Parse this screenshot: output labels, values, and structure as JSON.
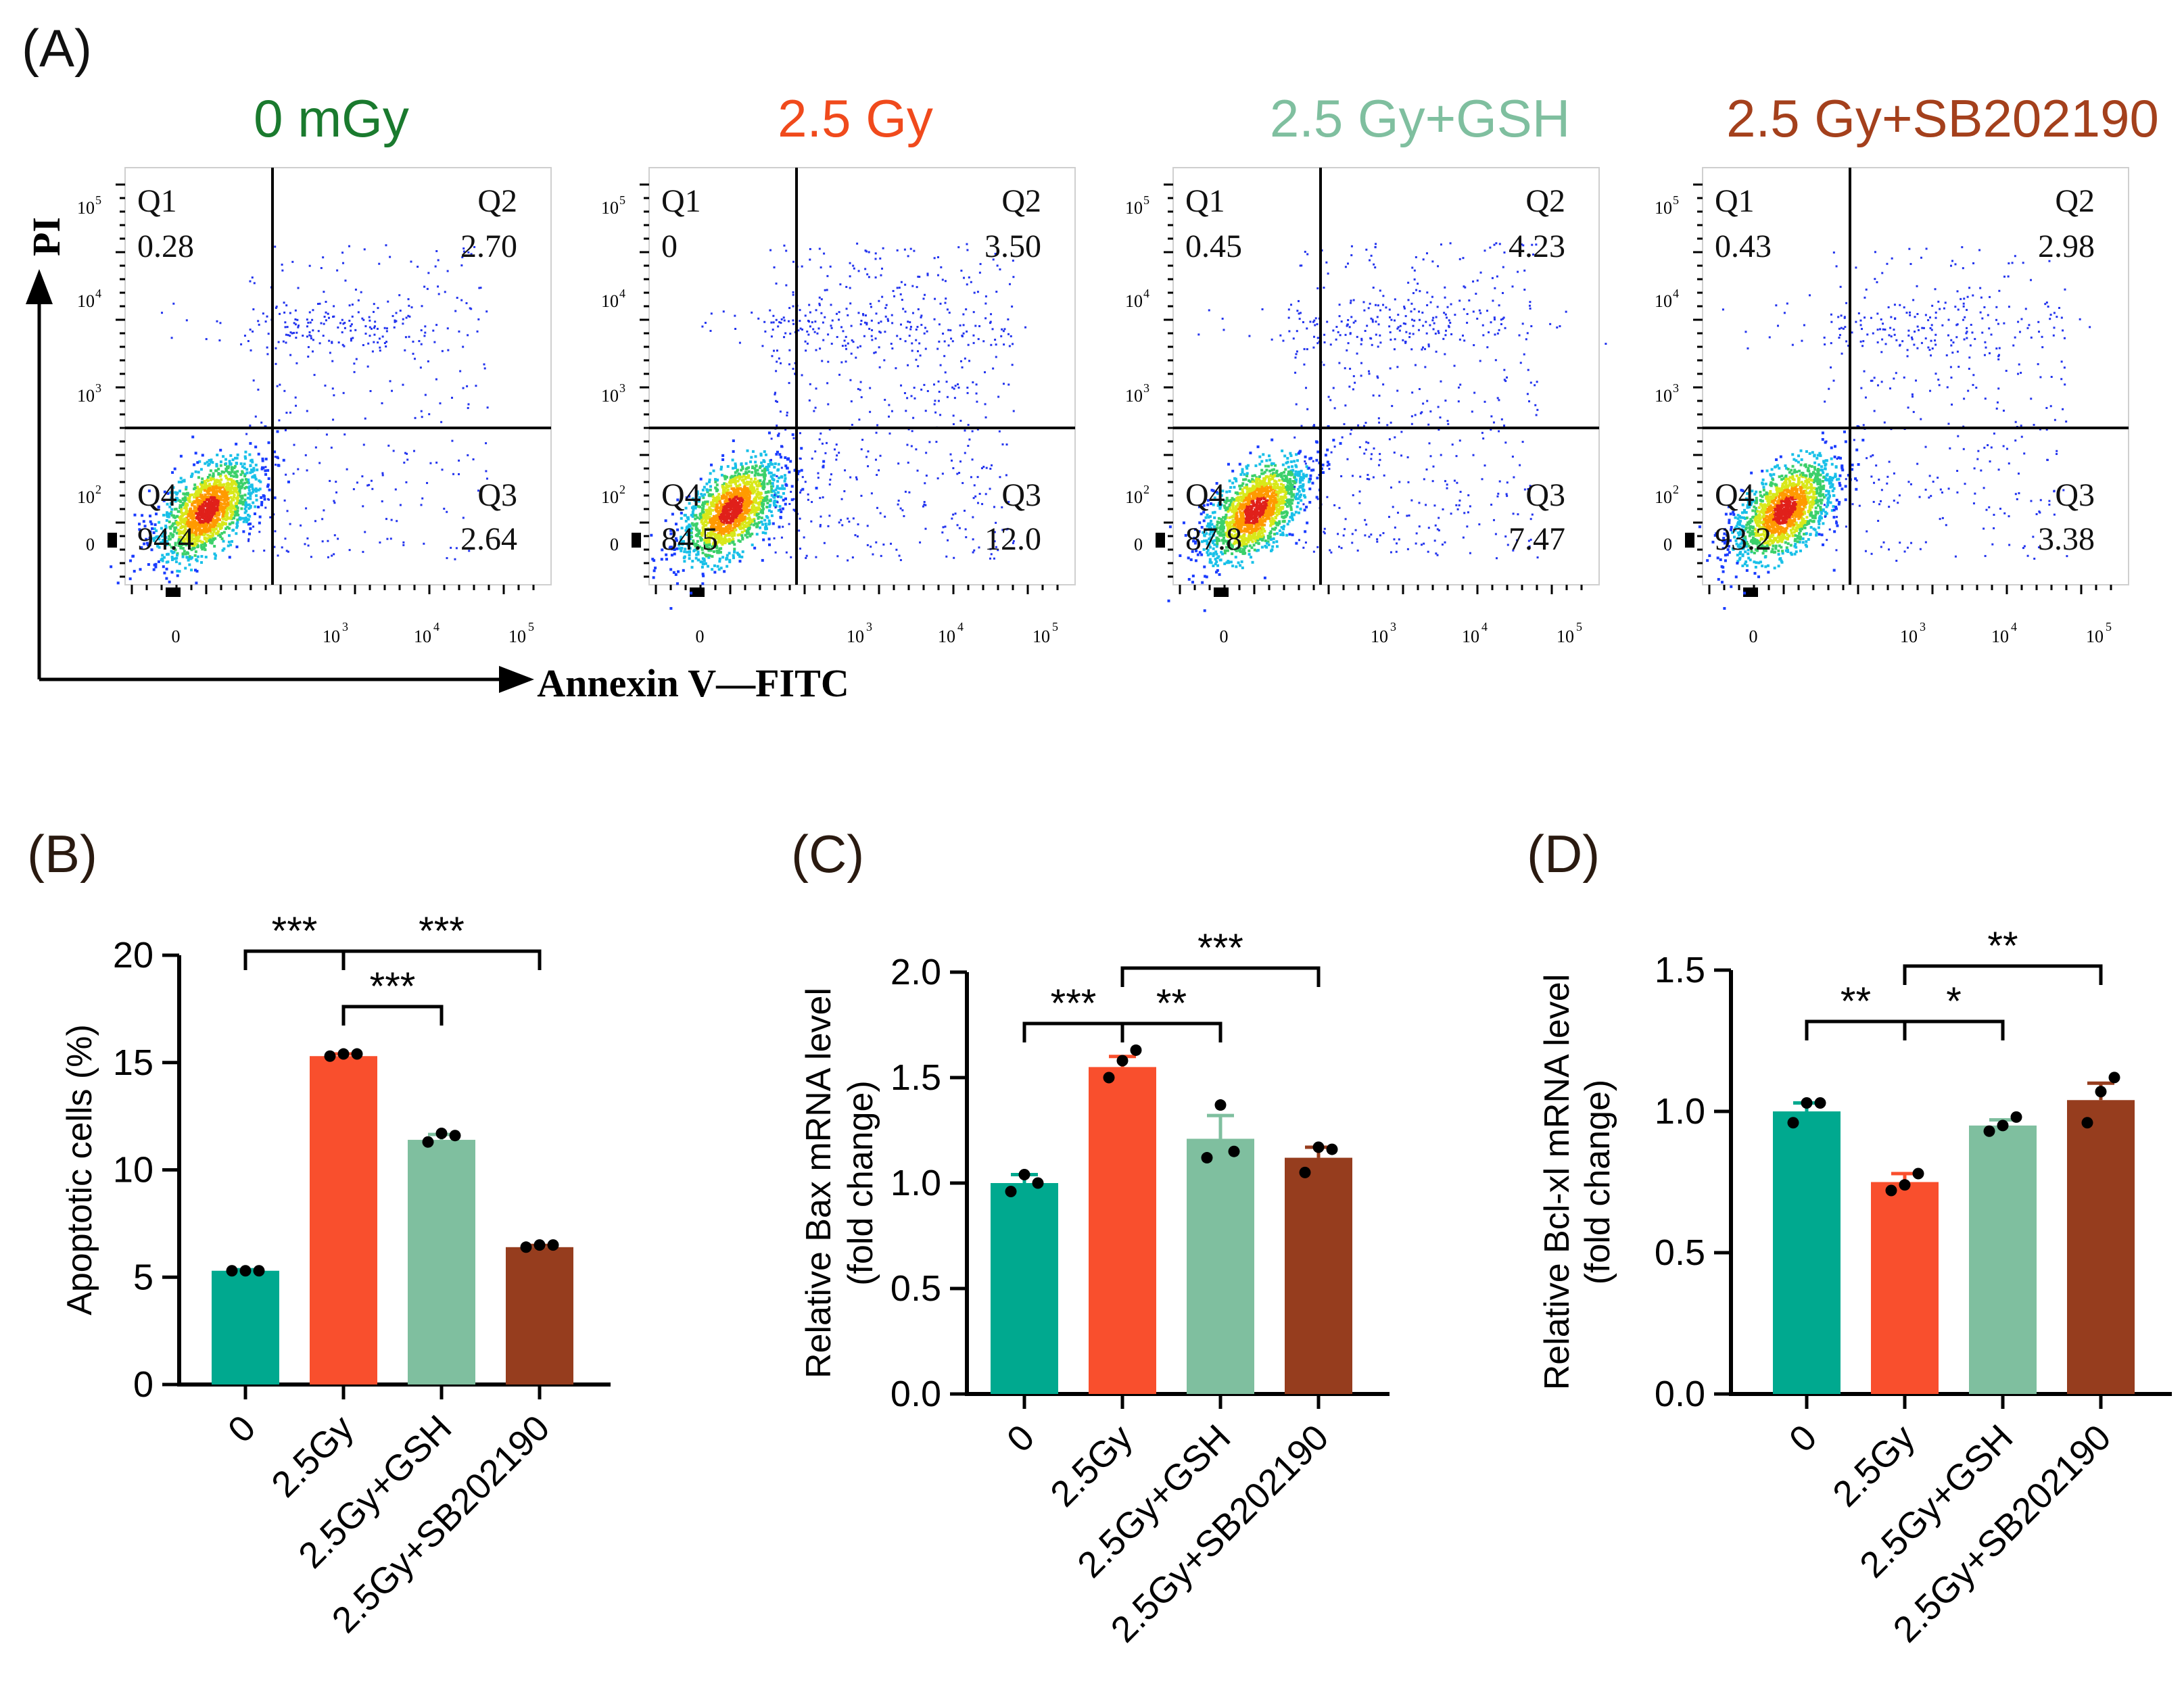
{
  "panel_a": {
    "label": "(A)",
    "y_axis_label": "PI",
    "x_axis_label": "Annexin V—FITC",
    "log_ticks": [
      "0",
      "10",
      "10",
      "10",
      "10"
    ],
    "log_ticks_exp": [
      "",
      "2",
      "3",
      "4",
      "5"
    ],
    "x_ticks": [
      "0",
      "10",
      "10",
      "10"
    ],
    "x_ticks_exp": [
      "",
      "3",
      "4",
      "5"
    ],
    "plots": [
      {
        "title": "0 mGy",
        "color": "#1a7a2e",
        "q1": "Q1",
        "q1_val": "0.28",
        "q2": "Q2",
        "q2_val": "2.70",
        "q3": "Q3",
        "q3_val": "2.64",
        "q4": "Q4",
        "q4_val": "94.4",
        "spread": 0.55
      },
      {
        "title": "2.5 Gy",
        "color": "#f04a1c",
        "q1": "Q1",
        "q1_val": "0",
        "q2": "Q2",
        "q2_val": "3.50",
        "q3": "Q3",
        "q3_val": "12.0",
        "q4": "Q4",
        "q4_val": "84.5",
        "spread": 1.0
      },
      {
        "title": "2.5 Gy+GSH",
        "color": "#7fbf9f",
        "q1": "Q1",
        "q1_val": "0.45",
        "q2": "Q2",
        "q2_val": "4.23",
        "q3": "Q3",
        "q3_val": "7.47",
        "q4": "Q4",
        "q4_val": "87.8",
        "spread": 0.85
      },
      {
        "title": "2.5 Gy+SB202190",
        "color": "#a4401c",
        "q1": "Q1",
        "q1_val": "0.43",
        "q2": "Q2",
        "q2_val": "2.98",
        "q3": "Q3",
        "q3_val": "3.38",
        "q4": "Q4",
        "q4_val": "93.2",
        "spread": 0.6
      }
    ]
  },
  "chart_data": [
    {
      "panel": "(B)",
      "type": "bar",
      "categories": [
        "0",
        "2.5Gy",
        "2.5Gy+GSH",
        "2.5Gy+SB202190"
      ],
      "values": [
        5.3,
        15.3,
        11.4,
        6.4
      ],
      "errors": [
        0.05,
        0.1,
        0.25,
        0.08
      ],
      "points": [
        [
          5.3,
          5.3,
          5.3
        ],
        [
          15.3,
          15.4,
          15.4
        ],
        [
          11.3,
          11.7,
          11.6
        ],
        [
          6.4,
          6.5,
          6.5
        ]
      ],
      "colors": [
        "#00a98f",
        "#f94f2d",
        "#7fbf9f",
        "#963d1e"
      ],
      "title": "",
      "ylabel": "Apoptotic cells (%)",
      "xlabel": "",
      "ylim": [
        0,
        20
      ],
      "yticks": [
        "0",
        "5",
        "10",
        "15",
        "20"
      ],
      "significance": [
        {
          "from": 0,
          "to": 1,
          "label": "***",
          "level": 0
        },
        {
          "from": 1,
          "to": 3,
          "label": "***",
          "level": 0
        },
        {
          "from": 1,
          "to": 2,
          "label": "***",
          "level": 1
        }
      ]
    },
    {
      "panel": "(C)",
      "type": "bar",
      "categories": [
        "0",
        "2.5Gy",
        "2.5Gy+GSH",
        "2.5Gy+SB202190"
      ],
      "values": [
        1.0,
        1.55,
        1.21,
        1.12
      ],
      "errors": [
        0.04,
        0.05,
        0.11,
        0.05
      ],
      "points": [
        [
          0.96,
          1.04,
          1.0
        ],
        [
          1.5,
          1.58,
          1.63
        ],
        [
          1.12,
          1.37,
          1.15
        ],
        [
          1.05,
          1.17,
          1.16
        ]
      ],
      "colors": [
        "#00a98f",
        "#f94f2d",
        "#7fbf9f",
        "#963d1e"
      ],
      "title": "",
      "ylabel": "Relative Bax mRNA level",
      "ylabel2": "(fold change)",
      "xlabel": "",
      "ylim": [
        0,
        2.0
      ],
      "yticks": [
        "0.0",
        "0.5",
        "1.0",
        "1.5",
        "2.0"
      ],
      "significance": [
        {
          "from": 0,
          "to": 1,
          "label": "***",
          "level": 1
        },
        {
          "from": 1,
          "to": 2,
          "label": "**",
          "level": 1
        },
        {
          "from": 1,
          "to": 3,
          "label": "***",
          "level": 0
        }
      ]
    },
    {
      "panel": "(D)",
      "type": "bar",
      "categories": [
        "0",
        "2.5Gy",
        "2.5Gy+GSH",
        "2.5Gy+SB202190"
      ],
      "values": [
        1.0,
        0.75,
        0.95,
        1.04
      ],
      "errors": [
        0.03,
        0.03,
        0.02,
        0.06
      ],
      "points": [
        [
          0.96,
          1.03,
          1.03
        ],
        [
          0.72,
          0.74,
          0.78
        ],
        [
          0.93,
          0.95,
          0.98
        ],
        [
          0.96,
          1.07,
          1.12
        ]
      ],
      "colors": [
        "#00a98f",
        "#f94f2d",
        "#7fbf9f",
        "#963d1e"
      ],
      "title": "",
      "ylabel": "Relative Bcl-xl mRNA level",
      "ylabel2": "(fold change)",
      "xlabel": "",
      "ylim": [
        0,
        1.5
      ],
      "yticks": [
        "0.0",
        "0.5",
        "1.0",
        "1.5"
      ],
      "significance": [
        {
          "from": 0,
          "to": 1,
          "label": "**",
          "level": 1
        },
        {
          "from": 1,
          "to": 2,
          "label": "*",
          "level": 1
        },
        {
          "from": 1,
          "to": 3,
          "label": "**",
          "level": 0
        }
      ]
    }
  ]
}
